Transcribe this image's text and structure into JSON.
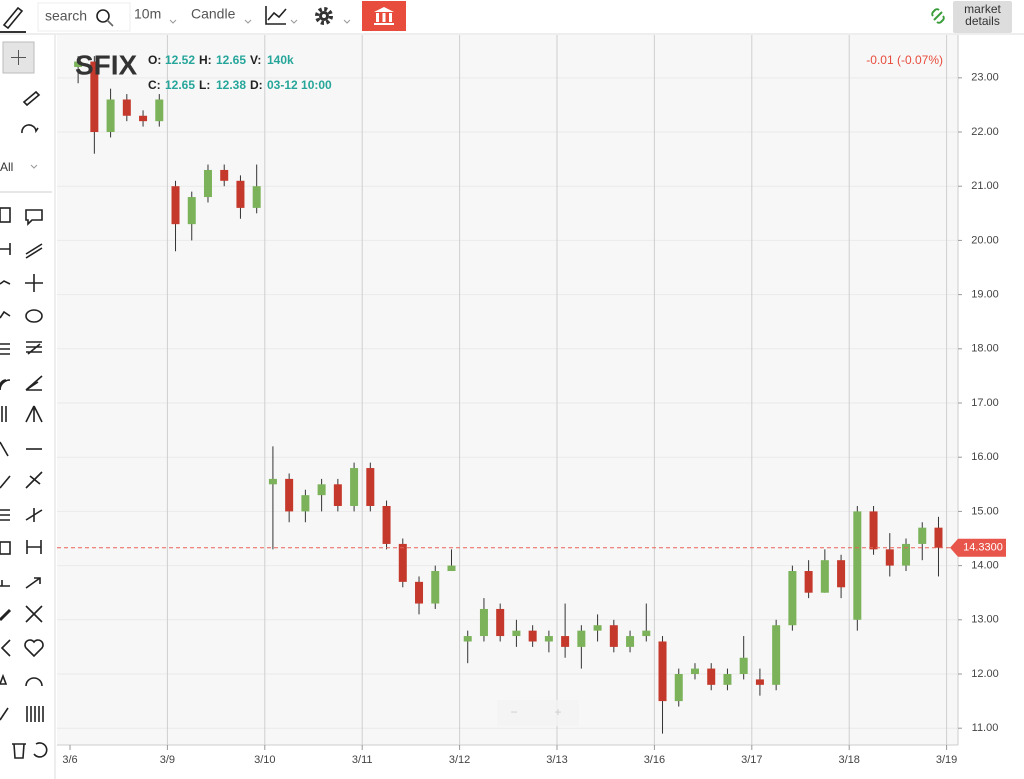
{
  "toolbar": {
    "search": "search",
    "interval": "10m",
    "chart_style": "Candle",
    "market_details": [
      "market",
      "details"
    ]
  },
  "tools": {
    "filter": "All"
  },
  "zoom": [
    "−",
    "+"
  ],
  "chart_data": {
    "type": "candlestick",
    "title": "SFIX",
    "header": [
      {
        "label": "O:",
        "value": 12.52
      },
      {
        "label": "H:",
        "value": 12.65
      },
      {
        "label": "V:",
        "value": "140k"
      },
      {
        "label": "C:",
        "value": 12.65
      },
      {
        "label": "L:",
        "value": 12.38
      },
      {
        "label": "D:",
        "value": "03-12 10:00"
      }
    ],
    "change": "-0.01 (-0.07%)",
    "last_price": {
      "value": 14.33,
      "label": "14.3300"
    },
    "dates": [
      "3/6",
      "3/9",
      "3/10",
      "3/11",
      "3/12",
      "3/13",
      "3/16",
      "3/17",
      "3/18",
      "3/19"
    ],
    "open": [
      23.2,
      23.3,
      22.0,
      22.6,
      22.3,
      22.2,
      21.0,
      20.3,
      20.8,
      21.3,
      21.1,
      20.6,
      15.5,
      15.6,
      15.0,
      15.3,
      15.5,
      15.1,
      15.8,
      15.1,
      14.4,
      13.7,
      13.3,
      13.9,
      12.6,
      12.7,
      13.2,
      12.7,
      12.8,
      12.6,
      12.7,
      12.5,
      12.8,
      12.9,
      12.5,
      12.7,
      12.6,
      11.5,
      12.0,
      12.1,
      11.8,
      12.0,
      11.9,
      11.8,
      12.9,
      13.9,
      13.5,
      14.1,
      13.0,
      15.0,
      14.3,
      14.0,
      14.4,
      14.7
    ],
    "high": [
      23.4,
      23.4,
      22.8,
      22.7,
      22.4,
      22.7,
      21.1,
      20.9,
      21.4,
      21.4,
      21.2,
      21.4,
      16.2,
      15.7,
      15.4,
      15.6,
      15.6,
      15.9,
      15.9,
      15.2,
      14.5,
      13.8,
      14.0,
      14.3,
      12.8,
      13.4,
      13.3,
      13.0,
      12.9,
      12.8,
      13.3,
      12.9,
      13.1,
      13.0,
      12.8,
      13.3,
      12.7,
      12.1,
      12.2,
      12.2,
      12.1,
      12.7,
      12.1,
      13.0,
      14.0,
      14.1,
      14.3,
      14.2,
      15.1,
      15.1,
      14.6,
      14.5,
      14.8,
      14.9
    ],
    "low": [
      22.9,
      21.6,
      21.9,
      22.2,
      22.1,
      22.1,
      19.8,
      20.0,
      20.7,
      21.0,
      20.4,
      20.5,
      14.3,
      14.8,
      14.8,
      15.0,
      15.0,
      15.0,
      15.0,
      14.3,
      13.6,
      13.1,
      13.2,
      13.9,
      12.2,
      12.6,
      12.6,
      12.5,
      12.5,
      12.4,
      12.3,
      12.1,
      12.6,
      12.4,
      12.4,
      12.6,
      10.9,
      11.4,
      11.9,
      11.7,
      11.7,
      11.9,
      11.6,
      11.7,
      12.8,
      13.4,
      13.5,
      13.4,
      12.8,
      14.2,
      13.8,
      13.9,
      14.1,
      13.8
    ],
    "close": [
      23.3,
      22.0,
      22.6,
      22.3,
      22.2,
      22.6,
      20.3,
      20.8,
      21.3,
      21.1,
      20.6,
      21.0,
      15.6,
      15.0,
      15.3,
      15.5,
      15.1,
      15.8,
      15.1,
      14.4,
      13.7,
      13.3,
      13.9,
      14.0,
      12.7,
      13.2,
      12.7,
      12.8,
      12.6,
      12.7,
      12.5,
      12.8,
      12.9,
      12.5,
      12.7,
      12.8,
      11.5,
      12.0,
      12.1,
      11.8,
      12.0,
      12.3,
      11.8,
      12.9,
      13.9,
      13.5,
      14.1,
      13.6,
      15.0,
      14.3,
      14.0,
      14.4,
      14.7,
      14.33
    ],
    "up_color": "#7cb35a",
    "down_color": "#c4392b",
    "ylim": [
      10.69,
      23.79
    ],
    "yticks": [
      {
        "value": 11,
        "label": "11.00"
      },
      {
        "value": 12,
        "label": "12.00"
      },
      {
        "value": 13,
        "label": "13.00"
      },
      {
        "value": 14,
        "label": "14.00"
      },
      {
        "value": 15,
        "label": "15.00"
      },
      {
        "value": 16,
        "label": "16.00"
      },
      {
        "value": 17,
        "label": "17.00"
      },
      {
        "value": 18,
        "label": "18.00"
      },
      {
        "value": 19,
        "label": "19.00"
      },
      {
        "value": 20,
        "label": "20.00"
      },
      {
        "value": 21,
        "label": "21.00"
      },
      {
        "value": 22,
        "label": "22.00"
      },
      {
        "value": 23,
        "label": "23.00"
      }
    ],
    "grid": true
  }
}
